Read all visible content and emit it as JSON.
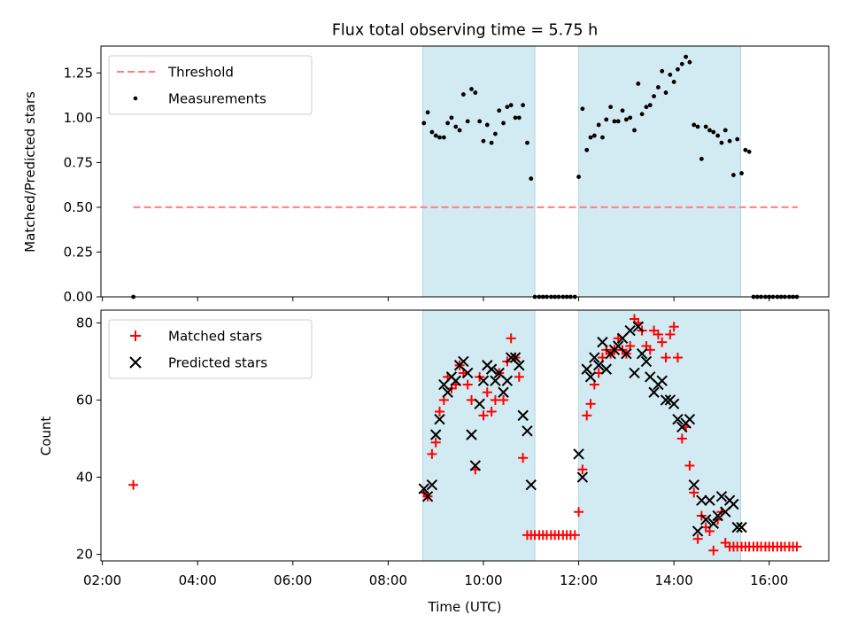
{
  "chart_data": [
    {
      "type": "scatter",
      "title": "Flux total observing time = 5.75 h",
      "xlabel": "",
      "ylabel": "Matched/Predicted stars",
      "xlim": [
        1.97,
        17.25
      ],
      "ylim": [
        0,
        1.4
      ],
      "xticks": [
        2,
        4,
        6,
        8,
        10,
        12,
        14,
        16
      ],
      "yticks": [
        0.0,
        0.25,
        0.5,
        0.75,
        1.0,
        1.25
      ],
      "ytick_labels": [
        "0.00",
        "0.25",
        "0.50",
        "0.75",
        "1.00",
        "1.25"
      ],
      "shaded_intervals": [
        [
          8.73,
          11.08
        ],
        [
          12.0,
          15.4
        ]
      ],
      "legend": {
        "location": "upper-left",
        "entries": [
          "Threshold",
          "Measurements"
        ]
      },
      "threshold": {
        "name": "Threshold",
        "x": [
          2.65,
          16.6
        ],
        "y": [
          0.5,
          0.5
        ],
        "color": "#ff7f7f"
      },
      "series": [
        {
          "name": "Measurements",
          "color": "#000000",
          "x": [
            2.65,
            8.75,
            8.83,
            8.92,
            9.0,
            9.08,
            9.17,
            9.25,
            9.33,
            9.42,
            9.5,
            9.58,
            9.67,
            9.75,
            9.83,
            9.92,
            10.0,
            10.08,
            10.17,
            10.25,
            10.33,
            10.42,
            10.5,
            10.58,
            10.67,
            10.75,
            10.83,
            10.92,
            11.0,
            11.08,
            11.17,
            11.25,
            11.33,
            11.42,
            11.5,
            11.58,
            11.67,
            11.75,
            11.83,
            11.92,
            12.0,
            12.08,
            12.17,
            12.25,
            12.33,
            12.42,
            12.5,
            12.58,
            12.67,
            12.75,
            12.83,
            12.92,
            13.0,
            13.08,
            13.17,
            13.25,
            13.33,
            13.42,
            13.5,
            13.58,
            13.67,
            13.75,
            13.83,
            13.92,
            14.0,
            14.08,
            14.17,
            14.25,
            14.33,
            14.42,
            14.5,
            14.58,
            14.67,
            14.75,
            14.83,
            14.92,
            15.0,
            15.08,
            15.17,
            15.25,
            15.33,
            15.42,
            15.5,
            15.58,
            15.67,
            15.75,
            15.83,
            15.92,
            16.0,
            16.08,
            16.17,
            16.25,
            16.33,
            16.42,
            16.5,
            16.58
          ],
          "y": [
            0.0,
            0.97,
            1.03,
            0.92,
            0.9,
            0.89,
            0.89,
            0.97,
            1.0,
            0.95,
            0.93,
            1.13,
            0.98,
            1.16,
            1.14,
            0.98,
            0.87,
            0.96,
            0.86,
            0.91,
            1.04,
            0.97,
            1.06,
            1.07,
            1.0,
            1.0,
            1.07,
            0.86,
            0.66,
            0.0,
            0.0,
            0.0,
            0.0,
            0.0,
            0.0,
            0.0,
            0.0,
            0.0,
            0.0,
            0.0,
            0.67,
            1.05,
            0.82,
            0.89,
            0.9,
            0.96,
            0.89,
            0.99,
            1.06,
            0.98,
            0.98,
            1.04,
            0.99,
            1.0,
            0.93,
            1.19,
            1.02,
            1.06,
            1.07,
            1.12,
            1.17,
            1.26,
            1.14,
            1.24,
            1.2,
            1.27,
            1.3,
            1.34,
            1.31,
            0.96,
            0.95,
            0.77,
            0.95,
            0.93,
            0.92,
            0.9,
            0.86,
            0.93,
            0.87,
            0.68,
            0.88,
            0.69,
            0.82,
            0.81,
            0.0,
            0.0,
            0.0,
            0.0,
            0.0,
            0.0,
            0.0,
            0.0,
            0.0,
            0.0,
            0.0,
            0.0
          ]
        }
      ]
    },
    {
      "type": "scatter",
      "title": "",
      "xlabel": "Time (UTC)",
      "ylabel": "Count",
      "xlim": [
        1.97,
        17.25
      ],
      "ylim": [
        18.3,
        83.3
      ],
      "xticks": [
        2,
        4,
        6,
        8,
        10,
        12,
        14,
        16
      ],
      "xtick_labels": [
        "02:00",
        "04:00",
        "06:00",
        "08:00",
        "10:00",
        "12:00",
        "14:00",
        "16:00"
      ],
      "yticks": [
        20,
        40,
        60,
        80
      ],
      "ytick_labels": [
        "20",
        "40",
        "60",
        "80"
      ],
      "shaded_intervals": [
        [
          8.73,
          11.08
        ],
        [
          12.0,
          15.4
        ]
      ],
      "legend": {
        "location": "upper-left",
        "entries": [
          "Matched stars",
          "Predicted stars"
        ]
      },
      "series": [
        {
          "name": "Matched stars",
          "marker": "+",
          "color": "#ff0000",
          "x": [
            2.65,
            8.75,
            8.83,
            8.92,
            9.0,
            9.08,
            9.17,
            9.25,
            9.33,
            9.42,
            9.5,
            9.58,
            9.67,
            9.75,
            9.83,
            9.92,
            10.0,
            10.08,
            10.17,
            10.25,
            10.33,
            10.42,
            10.5,
            10.58,
            10.67,
            10.75,
            10.83,
            10.92,
            11.0,
            11.08,
            11.17,
            11.25,
            11.33,
            11.42,
            11.5,
            11.58,
            11.67,
            11.75,
            11.83,
            11.92,
            12.0,
            12.08,
            12.17,
            12.25,
            12.33,
            12.42,
            12.5,
            12.58,
            12.67,
            12.75,
            12.83,
            12.92,
            13.0,
            13.08,
            13.17,
            13.25,
            13.33,
            13.42,
            13.5,
            13.58,
            13.67,
            13.75,
            13.83,
            13.92,
            14.0,
            14.08,
            14.17,
            14.25,
            14.33,
            14.42,
            14.5,
            14.58,
            14.67,
            14.75,
            14.83,
            14.92,
            15.0,
            15.08,
            15.17,
            15.25,
            15.33,
            15.42,
            15.5,
            15.58,
            15.67,
            15.75,
            15.83,
            15.92,
            16.0,
            16.08,
            16.17,
            16.25,
            16.33,
            16.42,
            16.5,
            16.58
          ],
          "y": [
            38,
            36,
            35,
            46,
            49,
            57,
            60,
            66,
            63,
            64,
            69,
            67,
            64,
            60,
            42,
            66,
            56,
            62,
            57,
            60,
            67,
            60,
            70,
            76,
            71,
            66,
            45,
            25,
            25,
            25,
            25,
            25,
            25,
            25,
            25,
            25,
            25,
            25,
            25,
            25,
            31,
            42,
            56,
            59,
            64,
            67,
            71,
            73,
            72,
            73,
            76,
            73,
            72,
            74,
            81,
            80,
            78,
            74,
            73,
            78,
            77,
            75,
            71,
            77,
            79,
            71,
            50,
            53,
            43,
            36,
            24,
            30,
            27,
            26,
            21,
            29,
            31,
            23,
            22,
            22,
            22,
            22,
            22,
            22,
            22,
            22,
            22,
            22,
            22,
            22,
            22,
            22,
            22,
            22,
            22,
            22
          ]
        },
        {
          "name": "Predicted stars",
          "marker": "x",
          "color": "#000000",
          "x": [
            8.75,
            8.83,
            8.92,
            9.0,
            9.08,
            9.17,
            9.25,
            9.33,
            9.42,
            9.5,
            9.58,
            9.67,
            9.75,
            9.83,
            9.92,
            10.0,
            10.08,
            10.17,
            10.25,
            10.33,
            10.42,
            10.5,
            10.58,
            10.67,
            10.75,
            10.83,
            10.92,
            11.0,
            12.0,
            12.08,
            12.17,
            12.25,
            12.33,
            12.42,
            12.5,
            12.58,
            12.67,
            12.75,
            12.83,
            12.92,
            13.0,
            13.08,
            13.17,
            13.25,
            13.33,
            13.42,
            13.5,
            13.58,
            13.67,
            13.75,
            13.83,
            13.92,
            14.0,
            14.08,
            14.17,
            14.25,
            14.33,
            14.42,
            14.5,
            14.58,
            14.67,
            14.75,
            14.83,
            14.92,
            15.0,
            15.08,
            15.17,
            15.25,
            15.33,
            15.42
          ],
          "y": [
            37,
            35,
            38,
            51,
            55,
            64,
            62,
            66,
            65,
            69,
            70,
            67,
            51,
            43,
            59,
            65,
            69,
            68,
            65,
            67,
            62,
            65,
            71,
            71,
            69,
            56,
            52,
            38,
            46,
            40,
            68,
            66,
            71,
            69,
            75,
            68,
            72,
            73,
            74,
            76,
            72,
            78,
            67,
            79,
            72,
            70,
            66,
            62,
            64,
            65,
            60,
            60,
            59,
            55,
            53,
            54,
            55,
            38,
            26,
            34,
            29,
            34,
            28,
            30,
            35,
            31,
            34,
            33,
            27,
            27
          ]
        }
      ]
    }
  ]
}
